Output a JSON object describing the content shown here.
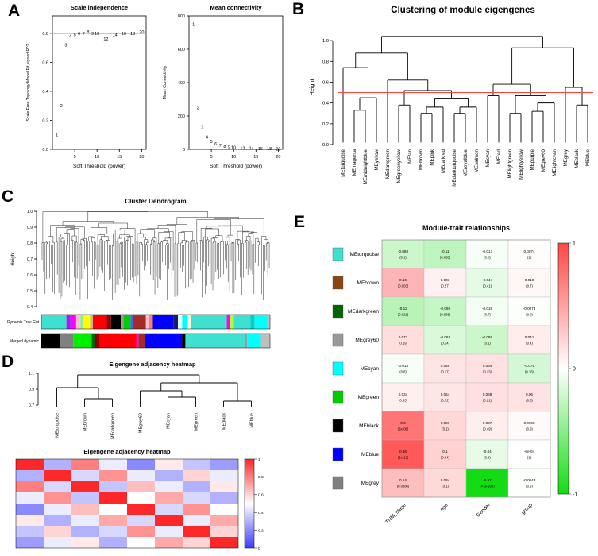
{
  "panel_letters": {
    "a": "A",
    "b": "B",
    "c": "C",
    "d": "D",
    "e": "E"
  },
  "chart_data": [
    {
      "id": "scale-independence",
      "type": "scatter",
      "title": "Scale independence",
      "xlabel": "Soft Threshold (power)",
      "ylabel": "Scale Free Topology Model Fit,signed R^2",
      "x": [
        1,
        2,
        3,
        4,
        5,
        6,
        7,
        8,
        9,
        10,
        12,
        14,
        16,
        18,
        20
      ],
      "y": [
        0.1,
        0.3,
        0.72,
        0.78,
        0.79,
        0.8,
        0.8,
        0.81,
        0.8,
        0.8,
        0.76,
        0.79,
        0.8,
        0.8,
        0.81
      ],
      "xlim": [
        0,
        21
      ],
      "ylim": [
        0,
        0.92
      ],
      "xticks": [
        5,
        10,
        15,
        20
      ],
      "yticks": [
        0.0,
        0.2,
        0.4,
        0.6,
        0.8
      ],
      "hline": 0.8,
      "hline_color": "#ff6b6b",
      "point_color": "#c0392b"
    },
    {
      "id": "mean-connectivity",
      "type": "scatter",
      "title": "Mean connectivity",
      "xlabel": "Soft Threshold (power)",
      "ylabel": "Mean Connectivity",
      "x": [
        1,
        2,
        3,
        4,
        5,
        6,
        7,
        8,
        9,
        10,
        12,
        14,
        16,
        18,
        20
      ],
      "y": [
        750,
        250,
        130,
        75,
        48,
        33,
        24,
        18,
        14,
        11,
        8,
        6,
        5,
        4,
        3
      ],
      "xlim": [
        0,
        21
      ],
      "ylim": [
        0,
        800
      ],
      "xticks": [
        5,
        10,
        15,
        20
      ],
      "yticks": [
        0,
        200,
        400,
        600,
        800
      ],
      "hline": null,
      "hline_color": null,
      "point_color": "#c0392b"
    },
    {
      "id": "module-eigengene-clustering",
      "type": "dendrogram",
      "title": "Clustering of module eigengenes",
      "ylabel": "Height",
      "ylim": [
        0,
        1.1
      ],
      "yticks": [
        0.0,
        0.2,
        0.4,
        0.6,
        0.8,
        1.0
      ],
      "hline": 0.5,
      "hline_color": "#ff4444",
      "leaf_baseline": 0.02,
      "tree": {
        "h": 1.04,
        "c": [
          {
            "h": 0.88,
            "c": [
              {
                "h": 0.74,
                "c": [
                  "MEturquoise",
                  {
                    "h": 0.45,
                    "c": [
                      {
                        "h": 0.33,
                        "c": [
                          "MEmagenta",
                          "MEmidnightblue"
                        ]
                      },
                      "MEyellow"
                    ]
                  }
                ]
              },
              {
                "h": 0.62,
                "c": [
                  "MEdarkgreen",
                  {
                    "h": 0.52,
                    "c": [
                      {
                        "h": 0.38,
                        "c": [
                          "MEgreenyellow",
                          "MEtan"
                        ]
                      },
                      {
                        "h": 0.44,
                        "c": [
                          {
                            "h": 0.36,
                            "c": [
                              {
                                "h": 0.3,
                                "c": [
                                  "MEbrown",
                                  "MEpink"
                                ]
                              },
                              "MEdarkred"
                            ]
                          },
                          {
                            "h": 0.36,
                            "c": [
                              {
                                "h": 0.3,
                                "c": [
                                  "MEdarkturquoise",
                                  "MEroyalblue"
                                ]
                              },
                              "MEsalmon"
                            ]
                          }
                        ]
                      }
                    ]
                  }
                ]
              }
            ]
          },
          {
            "h": 0.93,
            "c": [
              {
                "h": 0.58,
                "c": [
                  {
                    "h": 0.47,
                    "c": [
                      "MEcyan",
                      "MEred"
                    ]
                  },
                  {
                    "h": 0.47,
                    "c": [
                      {
                        "h": 0.3,
                        "c": [
                          "MElightgreen",
                          "MElightyellow"
                        ]
                      },
                      {
                        "h": 0.4,
                        "c": [
                          {
                            "h": 0.32,
                            "c": [
                              "MEpurple",
                              "MEgrey60"
                            ]
                          },
                          "MElightcyan"
                        ]
                      }
                    ]
                  }
                ]
              },
              {
                "h": 0.55,
                "c": [
                  "MEgrey",
                  {
                    "h": 0.38,
                    "c": [
                      "MEblack",
                      "MEblue"
                    ]
                  }
                ]
              }
            ]
          }
        ]
      }
    },
    {
      "id": "cluster-dendrogram",
      "type": "dense-dendrogram",
      "title": "Cluster Dendrogram",
      "ylabel": "Height",
      "ylim": [
        0.4,
        1.0
      ],
      "yticks": [
        0.4,
        0.5,
        0.6,
        0.7,
        0.8,
        0.9,
        1.0
      ],
      "n_leaves": 150,
      "seed": 7,
      "bars": [
        {
          "label": "Dynamic Tree Cut",
          "segments": [
            [
              "#40E0D0",
              9
            ],
            [
              "#A020F0",
              1.5
            ],
            [
              "#FF00FF",
              2
            ],
            [
              "#FFC0CB",
              1.5
            ],
            [
              "#90EE90",
              1
            ],
            [
              "#FFFF00",
              2.5
            ],
            [
              "#D2B48C",
              1
            ],
            [
              "#FF0000",
              5
            ],
            [
              "#8B0000",
              1.5
            ],
            [
              "#000000",
              3.5
            ],
            [
              "#999999",
              1
            ],
            [
              "#00CC00",
              2.5
            ],
            [
              "#4169E1",
              1
            ],
            [
              "#A52A2A",
              4.5
            ],
            [
              "#FFC0CB",
              1
            ],
            [
              "#FA8072",
              1.5
            ],
            [
              "#0000FF",
              7.5
            ],
            [
              "#191970",
              1.5
            ],
            [
              "#E0FFFF",
              1.5
            ],
            [
              "#00FFFF",
              2
            ],
            [
              "#FFFFE0",
              1
            ],
            [
              "#40E0D0",
              13
            ],
            [
              "#FF00FF",
              1
            ],
            [
              "#ADFF2F",
              1.5
            ],
            [
              "#40E0D0",
              6
            ],
            [
              "#00CED1",
              1.5
            ],
            [
              "#00FFFF",
              4.5
            ],
            [
              "#BEBEBE",
              1
            ]
          ]
        },
        {
          "label": "Merged dynamic",
          "segments": [
            [
              "#000000",
              8
            ],
            [
              "#808080",
              6
            ],
            [
              "#00EE00",
              8
            ],
            [
              "#006400",
              1.5
            ],
            [
              "#8B0000",
              2
            ],
            [
              "#FF0000",
              16
            ],
            [
              "#FF00FF",
              1
            ],
            [
              "#A52A2A",
              3
            ],
            [
              "#0000FF",
              16
            ],
            [
              "#000000",
              1.5
            ],
            [
              "#40E0D0",
              26
            ],
            [
              "#999999",
              1
            ],
            [
              "#00FFFF",
              6
            ],
            [
              "#BEBEBE",
              4
            ]
          ]
        }
      ]
    },
    {
      "id": "eigengene-dendrogram",
      "type": "dendrogram",
      "title": "Eigengene adjacency heatmap",
      "ylabel": "",
      "ylim": [
        0.66,
        1.12
      ],
      "yticks": [
        0.7,
        0.9,
        1.1
      ],
      "hline": null,
      "hline_color": null,
      "leaf_baseline": 0.68,
      "tree": {
        "h": 1.08,
        "c": [
          {
            "h": 0.92,
            "c": [
              "MEturquoise",
              {
                "h": 0.78,
                "c": [
                  "MEbrown",
                  "MEdarkgreen"
                ]
              }
            ]
          },
          {
            "h": 0.98,
            "c": [
              {
                "h": 0.88,
                "c": [
                  "MEgrey60",
                  {
                    "h": 0.8,
                    "c": [
                      "MEcyan",
                      "MEgreen"
                    ]
                  }
                ]
              },
              {
                "h": 0.75,
                "c": [
                  "MEblack",
                  "MEblue"
                ]
              }
            ]
          }
        ]
      }
    },
    {
      "id": "eigengene-adjacency-heatmap",
      "type": "heatmap",
      "title": "Eigengene adjacency heatmap",
      "labels": [
        "MEturquoise",
        "MEbrown",
        "MEdarkgreen",
        "MEgrey60",
        "MEcyan",
        "MEgreen",
        "MEblack",
        "MEblue"
      ],
      "matrix": [
        [
          1.0,
          0.3,
          0.8,
          0.45,
          0.2,
          0.55,
          0.35,
          0.25
        ],
        [
          0.3,
          1.0,
          0.4,
          0.75,
          0.45,
          0.3,
          0.6,
          0.45
        ],
        [
          0.8,
          0.4,
          1.0,
          0.35,
          0.65,
          0.45,
          0.3,
          0.55
        ],
        [
          0.45,
          0.75,
          0.35,
          1.0,
          0.5,
          0.7,
          0.4,
          0.3
        ],
        [
          0.2,
          0.45,
          0.65,
          0.5,
          1.0,
          0.4,
          0.75,
          0.5
        ],
        [
          0.55,
          0.3,
          0.45,
          0.7,
          0.4,
          1.0,
          0.45,
          0.7
        ],
        [
          0.35,
          0.6,
          0.3,
          0.4,
          0.75,
          0.45,
          1.0,
          0.6
        ],
        [
          0.25,
          0.45,
          0.55,
          0.3,
          0.5,
          0.7,
          0.6,
          1.0
        ]
      ],
      "colormap": "blue-white-red",
      "scale_ticks": [
        0,
        0.2,
        0.4,
        0.6,
        0.8,
        1
      ]
    },
    {
      "id": "module-trait-relationships",
      "type": "annotated-heatmap",
      "title": "Module-trait relationships",
      "columns": [
        "TNM_stage",
        "Age",
        "Gender",
        "group"
      ],
      "colormap": "green-white-red",
      "scale_ticks": [
        1,
        0,
        -1
      ],
      "rows": [
        {
          "name": "MEturquoise",
          "color": "#40E0D0",
          "cells": [
            [
              "-0.088",
              "0.1"
            ],
            [
              "-0.11",
              "0.055"
            ],
            [
              "-0.013",
              "0.8"
            ],
            [
              "0.0074",
              "1"
            ]
          ]
        },
        {
          "name": "MEbrown",
          "color": "#8B4513",
          "cells": [
            [
              "0.16",
              "0.003"
            ],
            [
              "0.031",
              "0.57"
            ],
            [
              "-0.044",
              "0.41"
            ],
            [
              "0.019",
              "0.7"
            ]
          ]
        },
        {
          "name": "MEdarkgreen",
          "color": "#006400",
          "cells": [
            [
              "-0.12",
              "0.021"
            ],
            [
              "-0.098",
              "0.068"
            ],
            [
              "-0.018",
              "0.7"
            ],
            [
              "-0.0073",
              "0.9"
            ]
          ]
        },
        {
          "name": "MEgrey60",
          "color": "#999999",
          "cells": [
            [
              "0.071",
              "0.19"
            ],
            [
              "-0.063",
              "0.24"
            ],
            [
              "-0.088",
              "0.1"
            ],
            [
              "0.041",
              "0.4"
            ]
          ]
        },
        {
          "name": "MEcyan",
          "color": "#00FFFF",
          "cells": [
            [
              "-0.014",
              "0.8"
            ],
            [
              "0.059",
              "0.27"
            ],
            [
              "0.064",
              "0.23"
            ],
            [
              "-0.075",
              "0.16"
            ]
          ]
        },
        {
          "name": "MEgreen",
          "color": "#00CC00",
          "cells": [
            [
              "0.034",
              "0.53"
            ],
            [
              "0.054",
              "0.32"
            ],
            [
              "0.068",
              "0.21"
            ],
            [
              "0.06",
              "0.3"
            ]
          ]
        },
        {
          "name": "MEblack",
          "color": "#000000",
          "cells": [
            [
              "0.3",
              "2e-08"
            ],
            [
              "0.087",
              "0.1"
            ],
            [
              "0.037",
              "0.49"
            ],
            [
              "0.0098",
              "0.9"
            ]
          ]
        },
        {
          "name": "MEblue",
          "color": "#0000FF",
          "cells": [
            [
              "0.36",
              "5e-12"
            ],
            [
              "0.1",
              "0.04"
            ],
            [
              "-0.04",
              "0.4"
            ],
            [
              "-6e-04",
              "1"
            ]
          ]
        },
        {
          "name": "MEgrey",
          "color": "#808080",
          "cells": [
            [
              "0.14",
              "0.0086"
            ],
            [
              "0.084",
              "0.1"
            ],
            [
              "-0.92",
              "<1e-200"
            ],
            [
              "-0.0043",
              "0.9"
            ]
          ]
        }
      ]
    }
  ]
}
